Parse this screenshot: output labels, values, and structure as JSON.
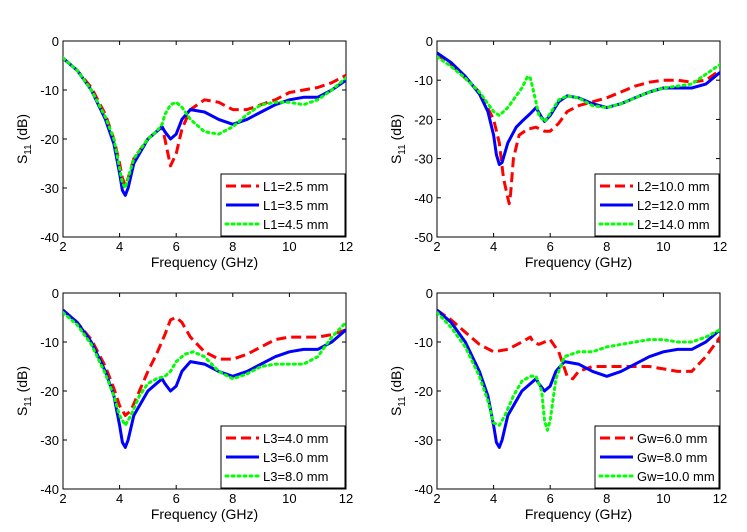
{
  "chart_data": [
    {
      "type": "line",
      "xlabel": "Frequency (GHz)",
      "ylabel": "S11 (dB)",
      "ylabel_main": "S",
      "ylabel_sub": "11",
      "ylabel_unit": " (dB)",
      "xlim": [
        2,
        12
      ],
      "ylim": [
        -40,
        0
      ],
      "xticks": [
        2,
        4,
        6,
        8,
        10,
        12
      ],
      "yticks": [
        0,
        -10,
        -20,
        -30,
        -40
      ],
      "grid": false,
      "legend_placement": "bottom-right",
      "series": [
        {
          "name": "L1=2.5 mm",
          "color": "#ff0000",
          "style": "dashed",
          "x": [
            2,
            2.5,
            3,
            3.5,
            3.8,
            4,
            4.1,
            4.2,
            4.3,
            4.5,
            5,
            5.3,
            5.5,
            5.6,
            5.8,
            6,
            6.2,
            6.5,
            7,
            7.5,
            8,
            8.5,
            9,
            9.5,
            10,
            10.5,
            11,
            11.5,
            12
          ],
          "y": [
            -3.5,
            -6,
            -9.5,
            -15,
            -20,
            -25,
            -28,
            -29.5,
            -28,
            -24,
            -20,
            -18.5,
            -17.5,
            -20,
            -25.5,
            -23,
            -18,
            -14,
            -12,
            -12.5,
            -14,
            -14,
            -13,
            -12,
            -10.5,
            -10,
            -9.5,
            -8.5,
            -7
          ]
        },
        {
          "name": "L1=3.5 mm",
          "color": "#0000ff",
          "style": "solid",
          "x": [
            2,
            2.5,
            3,
            3.5,
            3.8,
            4,
            4.1,
            4.2,
            4.3,
            4.5,
            5,
            5.3,
            5.5,
            5.6,
            5.8,
            6,
            6.2,
            6.5,
            7,
            7.5,
            8,
            8.5,
            9,
            9.5,
            10,
            10.5,
            11,
            11.5,
            12
          ],
          "y": [
            -3.5,
            -6,
            -10,
            -16,
            -21,
            -27,
            -30.5,
            -31.5,
            -30,
            -25,
            -20,
            -18.5,
            -17.5,
            -18.5,
            -20,
            -19,
            -16,
            -14,
            -14.5,
            -16,
            -17,
            -16,
            -14.5,
            -13,
            -12,
            -11.5,
            -11.5,
            -10,
            -8
          ]
        },
        {
          "name": "L1=4.5 mm",
          "color": "#00ff00",
          "style": "dotted",
          "x": [
            2,
            2.5,
            3,
            3.5,
            3.8,
            4,
            4.1,
            4.2,
            4.3,
            4.5,
            5,
            5.3,
            5.5,
            5.6,
            5.8,
            6,
            6.2,
            6.5,
            7,
            7.5,
            8,
            8.5,
            9,
            9.5,
            10,
            10.5,
            11,
            11.5,
            12
          ],
          "y": [
            -3.5,
            -6,
            -10,
            -15.5,
            -20,
            -26,
            -29,
            -30,
            -28,
            -24,
            -20,
            -18.5,
            -17,
            -15,
            -13,
            -12.5,
            -13.5,
            -16,
            -18.5,
            -19,
            -17.5,
            -15,
            -13,
            -12.5,
            -12.5,
            -13,
            -12,
            -10,
            -7.5
          ]
        }
      ]
    },
    {
      "type": "line",
      "xlabel": "Frequency (GHz)",
      "ylabel": "S11 (dB)",
      "ylabel_main": "S",
      "ylabel_sub": "11",
      "ylabel_unit": " (dB)",
      "xlim": [
        2,
        12
      ],
      "ylim": [
        -50,
        0
      ],
      "xticks": [
        2,
        4,
        6,
        8,
        10,
        12
      ],
      "yticks": [
        0,
        -10,
        -20,
        -30,
        -40,
        -50
      ],
      "grid": false,
      "legend_placement": "bottom-right",
      "series": [
        {
          "name": "L2=10.0 mm",
          "color": "#ff0000",
          "style": "dashed",
          "x": [
            2,
            2.5,
            3,
            3.5,
            4,
            4.2,
            4.35,
            4.5,
            4.55,
            4.6,
            4.7,
            4.9,
            5.2,
            5.5,
            5.8,
            6,
            6.3,
            6.6,
            7,
            7.5,
            8,
            8.5,
            9,
            9.5,
            10,
            10.5,
            11,
            11.5,
            12
          ],
          "y": [
            -3.5,
            -6,
            -9.5,
            -13,
            -20,
            -26,
            -35,
            -40,
            -41.5,
            -39,
            -30,
            -24,
            -22.5,
            -22,
            -23,
            -23,
            -21,
            -18,
            -16.5,
            -15.5,
            -14.5,
            -13,
            -11.5,
            -10.5,
            -10,
            -10,
            -10.5,
            -10,
            -7.5
          ]
        },
        {
          "name": "L2=12.0 mm",
          "color": "#0000ff",
          "style": "solid",
          "x": [
            2,
            2.5,
            3,
            3.5,
            3.8,
            4,
            4.1,
            4.2,
            4.3,
            4.5,
            4.8,
            5,
            5.3,
            5.5,
            5.7,
            5.8,
            6,
            6.3,
            6.6,
            7,
            7.5,
            8,
            8.5,
            9,
            9.5,
            10,
            10.5,
            11,
            11.5,
            12
          ],
          "y": [
            -3,
            -5.5,
            -9,
            -13.5,
            -18,
            -24,
            -29,
            -31.5,
            -31,
            -26,
            -22,
            -20.5,
            -18.5,
            -17,
            -19.5,
            -20.5,
            -19,
            -15.5,
            -14,
            -14.5,
            -16,
            -17,
            -16,
            -14.5,
            -13,
            -12,
            -12,
            -12,
            -11,
            -8
          ]
        },
        {
          "name": "L2=14.0 mm",
          "color": "#00ff00",
          "style": "dotted",
          "x": [
            2,
            2.5,
            3,
            3.5,
            4,
            4.2,
            4.5,
            4.8,
            5,
            5.2,
            5.3,
            5.45,
            5.6,
            5.8,
            6,
            6.3,
            6.6,
            7,
            7.5,
            8,
            8.5,
            9,
            9.5,
            10,
            10.5,
            11,
            11.5,
            12
          ],
          "y": [
            -4,
            -6.5,
            -9.5,
            -13,
            -18,
            -19,
            -17,
            -14,
            -12,
            -9,
            -9.5,
            -14,
            -19,
            -20.5,
            -18.5,
            -15,
            -14,
            -14.5,
            -16.5,
            -17,
            -16,
            -14.5,
            -13,
            -12,
            -11.5,
            -11,
            -8.5,
            -6
          ]
        }
      ]
    },
    {
      "type": "line",
      "xlabel": "Frequency (GHz)",
      "ylabel": "S11 (dB)",
      "ylabel_main": "S",
      "ylabel_sub": "11",
      "ylabel_unit": " (dB)",
      "xlim": [
        2,
        12
      ],
      "ylim": [
        -40,
        0
      ],
      "xticks": [
        2,
        4,
        6,
        8,
        10,
        12
      ],
      "yticks": [
        0,
        -10,
        -20,
        -30,
        -40
      ],
      "grid": false,
      "legend_placement": "bottom-right",
      "series": [
        {
          "name": "L3=4.0 mm",
          "color": "#ff0000",
          "style": "dashed",
          "x": [
            2,
            2.5,
            3,
            3.5,
            3.8,
            4,
            4.2,
            4.4,
            4.7,
            5,
            5.3,
            5.6,
            5.8,
            6,
            6.2,
            6.5,
            7,
            7.5,
            8,
            8.5,
            9,
            9.5,
            10,
            10.5,
            11,
            11.5,
            12
          ],
          "y": [
            -3.5,
            -6,
            -9.5,
            -15,
            -19.5,
            -23,
            -25,
            -24,
            -20,
            -16,
            -12.5,
            -8.5,
            -5.5,
            -5,
            -6,
            -9,
            -12,
            -13.5,
            -13.5,
            -12.5,
            -11,
            -9.5,
            -9,
            -9,
            -9,
            -8.5,
            -7.5
          ]
        },
        {
          "name": "L3=6.0 mm",
          "color": "#0000ff",
          "style": "solid",
          "x": [
            2,
            2.5,
            3,
            3.5,
            3.8,
            4,
            4.1,
            4.2,
            4.3,
            4.5,
            5,
            5.3,
            5.5,
            5.6,
            5.8,
            6,
            6.2,
            6.5,
            7,
            7.5,
            8,
            8.5,
            9,
            9.5,
            10,
            10.5,
            11,
            11.5,
            12
          ],
          "y": [
            -3.5,
            -6,
            -10,
            -16,
            -21,
            -27,
            -30.5,
            -31.5,
            -30,
            -25,
            -20,
            -18.5,
            -17.5,
            -18.5,
            -20,
            -19,
            -16,
            -14,
            -14.5,
            -16,
            -17,
            -16,
            -14.5,
            -13,
            -12,
            -11.5,
            -11.5,
            -10,
            -7.5
          ]
        },
        {
          "name": "L3=8.0 mm",
          "color": "#00ff00",
          "style": "dotted",
          "x": [
            2,
            2.5,
            3,
            3.5,
            3.8,
            4,
            4.2,
            4.4,
            4.7,
            5,
            5.3,
            5.6,
            5.8,
            6,
            6.3,
            6.6,
            7,
            7.5,
            8,
            8.5,
            9,
            9.5,
            10,
            10.5,
            11,
            11.5,
            12
          ],
          "y": [
            -4,
            -6.5,
            -10.5,
            -16.5,
            -21,
            -25,
            -27,
            -25,
            -21,
            -18.5,
            -17.5,
            -17,
            -16,
            -14,
            -12.5,
            -12,
            -13,
            -16,
            -17.5,
            -16.5,
            -15,
            -14.5,
            -14.5,
            -14.5,
            -13,
            -9,
            -6
          ]
        }
      ]
    },
    {
      "type": "line",
      "xlabel": "Frequency (GHz)",
      "ylabel": "S11 (dB)",
      "ylabel_main": "S",
      "ylabel_sub": "11",
      "ylabel_unit": " (dB)",
      "xlim": [
        2,
        12
      ],
      "ylim": [
        -40,
        0
      ],
      "xticks": [
        2,
        4,
        6,
        8,
        10,
        12
      ],
      "yticks": [
        0,
        -10,
        -20,
        -30,
        -40
      ],
      "grid": false,
      "legend_placement": "bottom-right",
      "series": [
        {
          "name": "Gw=6.0 mm",
          "color": "#ff0000",
          "style": "dashed",
          "x": [
            2,
            2.5,
            3,
            3.5,
            4,
            4.5,
            5,
            5.3,
            5.4,
            5.6,
            5.8,
            6,
            6.3,
            6.6,
            6.8,
            7,
            7.5,
            8,
            8.5,
            9,
            9.5,
            10,
            10.5,
            11,
            11.5,
            12
          ],
          "y": [
            -3.5,
            -5.5,
            -8,
            -10.5,
            -12,
            -11.5,
            -10,
            -9,
            -10,
            -10.5,
            -10,
            -9.5,
            -12,
            -17,
            -17.5,
            -16,
            -15,
            -15,
            -15,
            -15,
            -15,
            -15.5,
            -16,
            -16,
            -13,
            -9
          ]
        },
        {
          "name": "Gw=8.0 mm",
          "color": "#0000ff",
          "style": "solid",
          "x": [
            2,
            2.5,
            3,
            3.5,
            3.8,
            4,
            4.1,
            4.2,
            4.3,
            4.5,
            5,
            5.3,
            5.5,
            5.6,
            5.8,
            6,
            6.2,
            6.5,
            7,
            7.5,
            8,
            8.5,
            9,
            9.5,
            10,
            10.5,
            11,
            11.5,
            12
          ],
          "y": [
            -3.5,
            -6,
            -10,
            -16,
            -21,
            -27,
            -30.5,
            -31.5,
            -30,
            -25,
            -20,
            -18.5,
            -17.5,
            -18.5,
            -20,
            -19,
            -16,
            -14,
            -14.5,
            -16,
            -17,
            -16,
            -14.5,
            -13,
            -12,
            -11.5,
            -11.5,
            -10,
            -7.5
          ]
        },
        {
          "name": "Gw=10.0 mm",
          "color": "#00ff00",
          "style": "dotted",
          "x": [
            2,
            2.5,
            3,
            3.5,
            3.8,
            4,
            4.2,
            4.4,
            4.7,
            5,
            5.3,
            5.5,
            5.7,
            5.8,
            5.9,
            6,
            6.2,
            6.5,
            7,
            7.5,
            8,
            8.5,
            9,
            9.5,
            10,
            10.5,
            11,
            11.5,
            12
          ],
          "y": [
            -4,
            -7,
            -11,
            -17,
            -22,
            -26.5,
            -27,
            -25,
            -21,
            -18,
            -17,
            -17,
            -20,
            -26,
            -28,
            -26,
            -17.5,
            -13,
            -12,
            -12,
            -11,
            -10.5,
            -10,
            -9.5,
            -9.5,
            -10,
            -10,
            -9,
            -7.5
          ]
        }
      ]
    }
  ]
}
